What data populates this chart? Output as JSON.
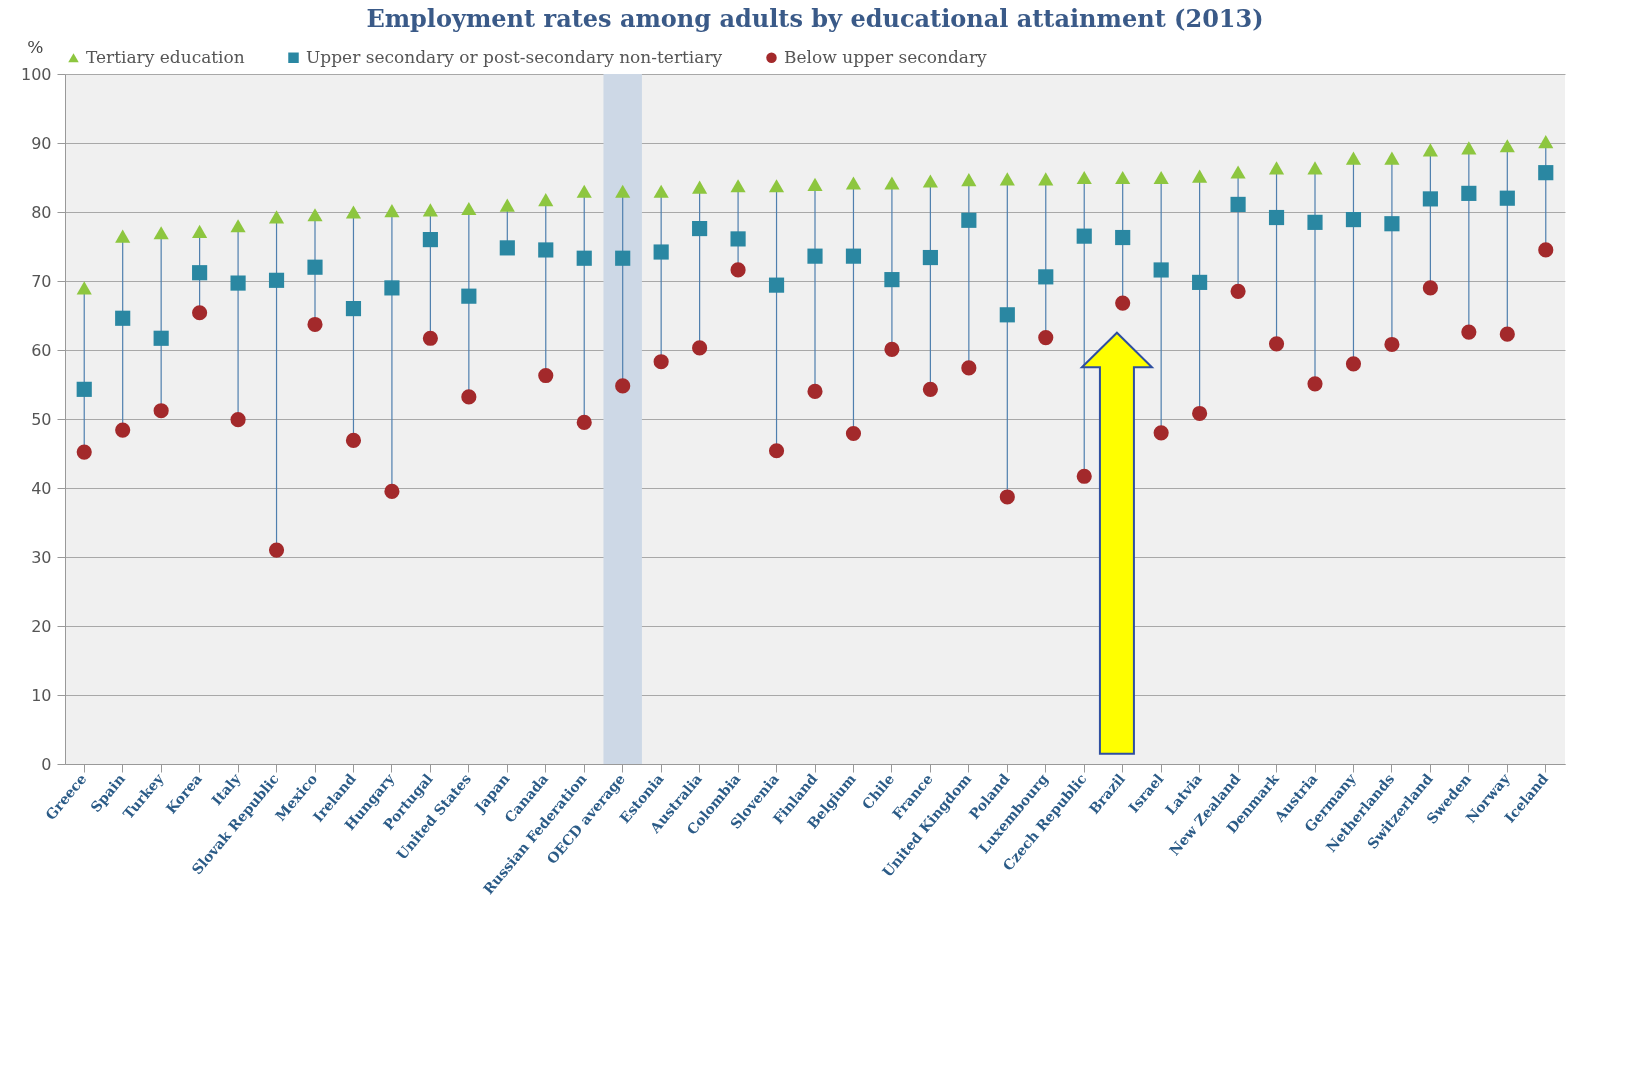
{
  "chart_data": {
    "type": "scatter",
    "title": "Employment rates among adults by educational attainment (2013)",
    "ylabel": "%",
    "categories": [
      "Greece",
      "Spain",
      "Turkey",
      "Korea",
      "Italy",
      "Slovak Republic",
      "Mexico",
      "Ireland",
      "Hungary",
      "Portugal",
      "United States",
      "Japan",
      "Canada",
      "Russian Federation",
      "OECD average",
      "Estonia",
      "Australia",
      "Colombia",
      "Slovenia",
      "Finland",
      "Belgium",
      "Chile",
      "France",
      "United Kingdom",
      "Poland",
      "Luxembourg",
      "Czech Republic",
      "Brazil",
      "Israel",
      "Latvia",
      "New Zealand",
      "Denmark",
      "Austria",
      "Germany",
      "Netherlands",
      "Switzerland",
      "Sweden",
      "Norway",
      "Iceland"
    ],
    "series": [
      {
        "name": "Tertiary education",
        "color": "#8dc63f",
        "marker": "triangle",
        "values": [
          69,
          76.5,
          77,
          77.2,
          78,
          79.3,
          79.6,
          80,
          80.2,
          80.3,
          80.5,
          81,
          81.8,
          83,
          83,
          83,
          83.6,
          83.8,
          83.8,
          84,
          84.2,
          84.2,
          84.5,
          84.7,
          84.8,
          84.8,
          85,
          85,
          85,
          85.2,
          85.8,
          86.4,
          86.4,
          87.8,
          87.8,
          89,
          89.3,
          89.6,
          90.2
        ]
      },
      {
        "name": "Upper secondary or post-secondary non-tertiary",
        "color": "#2a87a2",
        "marker": "square",
        "values": [
          54.3,
          64.6,
          61.7,
          71.2,
          69.7,
          70.1,
          72,
          66,
          69,
          76,
          67.8,
          74.8,
          74.5,
          73.3,
          73.3,
          74.2,
          77.6,
          76.1,
          69.4,
          73.6,
          73.6,
          70.2,
          73.4,
          78.8,
          65.1,
          70.6,
          76.5,
          76.3,
          71.6,
          69.8,
          81.1,
          79.2,
          78.5,
          78.9,
          78.3,
          81.9,
          82.7,
          82,
          85.7
        ]
      },
      {
        "name": "Below upper secondary",
        "color": "#a3292b",
        "marker": "circle",
        "values": [
          45.2,
          48.4,
          51.2,
          65.4,
          49.9,
          31,
          63.7,
          46.9,
          39.5,
          61.7,
          53.2,
          null,
          56.3,
          49.5,
          54.8,
          58.3,
          60.3,
          71.6,
          45.4,
          54,
          47.9,
          60.1,
          54.3,
          57.4,
          38.7,
          61.8,
          41.7,
          66.8,
          48,
          50.8,
          68.5,
          60.9,
          55.1,
          58,
          60.8,
          69,
          62.6,
          62.3,
          74.5
        ]
      }
    ],
    "ylim": [
      0,
      100
    ],
    "yticks": [
      0,
      10,
      20,
      30,
      40,
      50,
      60,
      70,
      80,
      90,
      100
    ],
    "grid": "y",
    "legend": "top",
    "bands": [
      {
        "axis": "x",
        "from": "OECD average",
        "to": "OECD average",
        "color": "#cdd8e6"
      }
    ]
  }
}
